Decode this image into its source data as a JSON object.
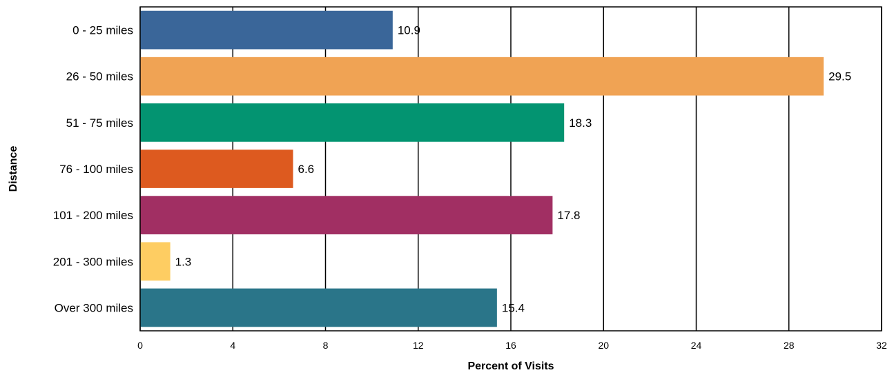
{
  "chart_data": {
    "type": "bar",
    "orientation": "horizontal",
    "categories": [
      "0 - 25 miles",
      "26 - 50 miles",
      "51 - 75 miles",
      "76 - 100 miles",
      "101 - 200 miles",
      "201 - 300 miles",
      "Over 300 miles"
    ],
    "values": [
      10.9,
      29.5,
      18.3,
      6.6,
      17.8,
      1.3,
      15.4
    ],
    "value_labels": [
      "10.9",
      "29.5",
      "18.3",
      "6.6",
      "17.8",
      "1.3",
      "15.4"
    ],
    "colors": [
      "#3a6699",
      "#f0a354",
      "#039471",
      "#dd5a1f",
      "#a12f63",
      "#fecd62",
      "#2a7589"
    ],
    "xlabel": "Percent of Visits",
    "ylabel": "Distance",
    "xlim": [
      0,
      32
    ],
    "xticks": [
      0,
      4,
      8,
      12,
      16,
      20,
      24,
      28,
      32
    ],
    "xtick_labels": [
      "0",
      "4",
      "8",
      "12",
      "16",
      "20",
      "24",
      "28",
      "32"
    ],
    "grid": "vertical"
  }
}
